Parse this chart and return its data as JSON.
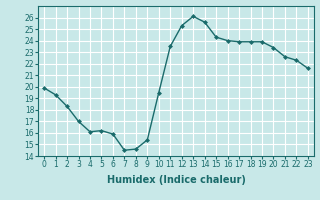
{
  "x": [
    0,
    1,
    2,
    3,
    4,
    5,
    6,
    7,
    8,
    9,
    10,
    11,
    12,
    13,
    14,
    15,
    16,
    17,
    18,
    19,
    20,
    21,
    22,
    23
  ],
  "y": [
    19.9,
    19.3,
    18.3,
    17.0,
    16.1,
    16.2,
    15.9,
    14.5,
    14.6,
    15.4,
    19.5,
    23.5,
    25.3,
    26.1,
    25.6,
    24.3,
    24.0,
    23.9,
    23.9,
    23.9,
    23.4,
    22.6,
    22.3,
    21.6
  ],
  "line_color": "#1a6b6b",
  "marker": "D",
  "marker_size": 2.0,
  "bg_color": "#c8e8e8",
  "grid_color": "#b0d8d8",
  "xlabel": "Humidex (Indice chaleur)",
  "ylim": [
    14,
    27
  ],
  "xlim": [
    -0.5,
    23.5
  ],
  "yticks": [
    14,
    15,
    16,
    17,
    18,
    19,
    20,
    21,
    22,
    23,
    24,
    25,
    26
  ],
  "xticks": [
    0,
    1,
    2,
    3,
    4,
    5,
    6,
    7,
    8,
    9,
    10,
    11,
    12,
    13,
    14,
    15,
    16,
    17,
    18,
    19,
    20,
    21,
    22,
    23
  ],
  "tick_label_size": 5.5,
  "xlabel_size": 7.0,
  "linewidth": 1.0
}
